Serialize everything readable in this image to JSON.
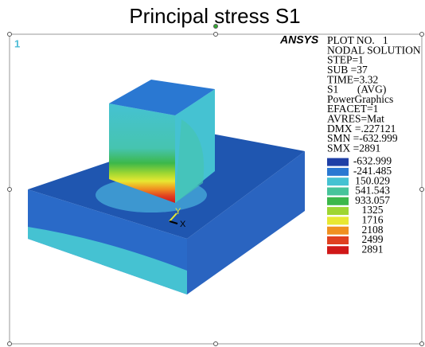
{
  "title": "Principal stress S1",
  "window_number": "1",
  "logo": "ANSYS",
  "info_lines": [
    "PLOT NO.   1",
    "NODAL SOLUTION",
    "STEP=1",
    "SUB =37",
    "TIME=3.32",
    "S1       (AVG)",
    "PowerGraphics",
    "EFACET=1",
    "AVRES=Mat",
    "DMX =.227121",
    "SMN =-632.999",
    "SMX =2891"
  ],
  "legend": [
    {
      "label": "-632.999",
      "color": "#1f3fa6"
    },
    {
      "label": "-241.485",
      "color": "#2a78d2"
    },
    {
      "label": "150.029",
      "color": "#45c2d2"
    },
    {
      "label": "541.543",
      "color": "#46c49a"
    },
    {
      "label": "933.057",
      "color": "#3cb84a"
    },
    {
      "label": "1325",
      "color": "#9ed632"
    },
    {
      "label": "1716",
      "color": "#e8e832"
    },
    {
      "label": "2108",
      "color": "#f09020"
    },
    {
      "label": "2499",
      "color": "#e04020"
    },
    {
      "label": "2891",
      "color": "#d01818"
    }
  ],
  "triad": {
    "y": "Y",
    "x": "X"
  }
}
